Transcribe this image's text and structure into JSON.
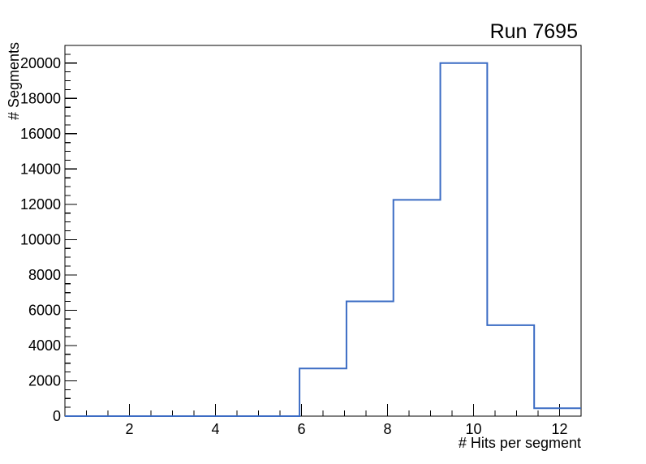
{
  "header": {
    "title": "Run 7695"
  },
  "chart_data": {
    "type": "histogram-step",
    "title": "Run 7695",
    "xlabel": "# Hits per segment",
    "ylabel": "# Segments",
    "xlim": [
      0.5,
      12.5
    ],
    "ylim": [
      0,
      21000
    ],
    "bin_count": 11,
    "bin_edges": [
      0.5,
      1.5909,
      2.6818,
      3.7727,
      4.8636,
      5.9545,
      7.0455,
      8.1364,
      9.2273,
      10.3182,
      11.4091,
      12.5
    ],
    "values": [
      0,
      0,
      0,
      0,
      0,
      2700,
      6500,
      12250,
      20000,
      5150,
      450
    ],
    "x_major_ticks": [
      2,
      4,
      6,
      8,
      10,
      12
    ],
    "x_tick_labels": [
      "2",
      "4",
      "6",
      "8",
      "10",
      "12"
    ],
    "x_minor_step": 0.5,
    "y_major_ticks": [
      0,
      2000,
      4000,
      6000,
      8000,
      10000,
      12000,
      14000,
      16000,
      18000,
      20000
    ],
    "y_tick_labels": [
      "0",
      "2000",
      "4000",
      "6000",
      "8000",
      "10000",
      "12000",
      "14000",
      "16000",
      "18000",
      "20000"
    ],
    "y_minor_step": 500,
    "line_color": "#3b6cc4",
    "axis_color": "#000000",
    "background_color": "#ffffff",
    "grid": false,
    "legend": null
  }
}
